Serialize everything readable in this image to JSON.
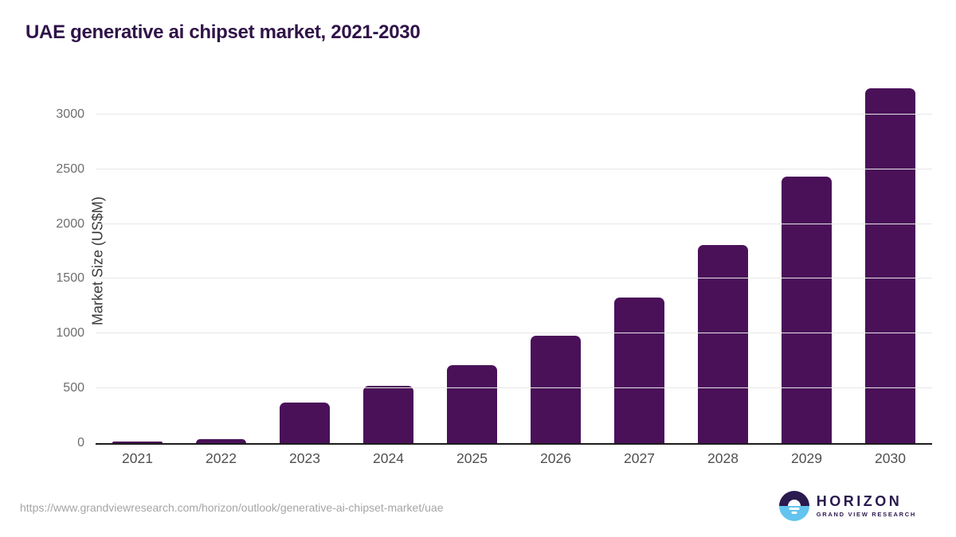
{
  "title": "UAE generative ai chipset market, 2021-2030",
  "chart_data": {
    "type": "bar",
    "categories": [
      "2021",
      "2022",
      "2023",
      "2024",
      "2025",
      "2026",
      "2027",
      "2028",
      "2029",
      "2030"
    ],
    "values": [
      15,
      40,
      370,
      525,
      715,
      980,
      1330,
      1810,
      2435,
      3240
    ],
    "title": "UAE generative ai chipset market, 2021-2030",
    "xlabel": "",
    "ylabel": "Market Size (US$M)",
    "ylim": [
      0,
      3325
    ],
    "yticks": [
      0,
      500,
      1000,
      1500,
      2000,
      2500,
      3000
    ],
    "grid": "horizontal",
    "legend": "none",
    "bar_color": "#4A1159"
  },
  "footer": {
    "source_url": "https://www.grandviewresearch.com/horizon/outlook/generative-ai-chipset-market/uae",
    "logo": {
      "name": "HORIZON",
      "subtitle": "GRAND VIEW RESEARCH"
    }
  },
  "colors": {
    "bar": "#4A1159",
    "title_text": "#301349",
    "axis_line": "#1c1c1c",
    "gridline": "#e7e7e7",
    "tick_text": "#6e6e6e",
    "logo_purple": "#2A1A4E",
    "logo_blue": "#62C4EF"
  }
}
